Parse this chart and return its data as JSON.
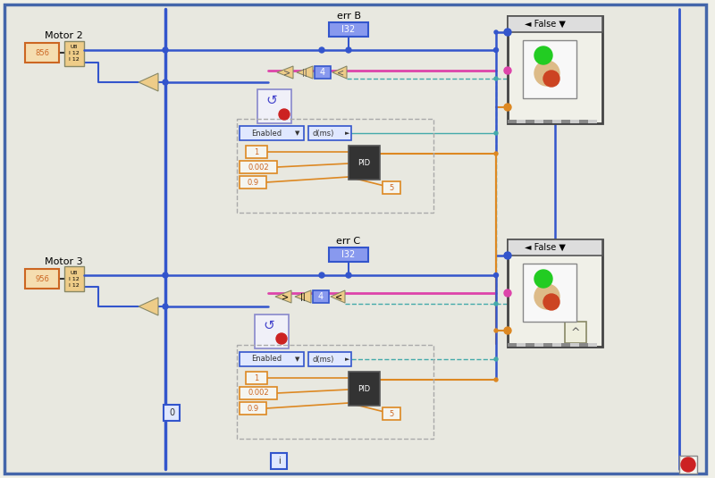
{
  "bg_color": "#f0f0e8",
  "wire_blue": "#3355cc",
  "wire_pink": "#dd44aa",
  "wire_orange": "#dd8822",
  "wire_green": "#44aa44",
  "wire_teal": "#44aaaa",
  "motor2_label": "Motor 2",
  "motor3_label": "Motor 3",
  "errB_label": "err B",
  "errC_label": "err C",
  "false_label": "False",
  "enabled_label": "Enabled",
  "pid_label": "PID",
  "val1": "1",
  "val2": "0.002",
  "val3": "0.9",
  "val4": "4",
  "val5": "5",
  "val6": "0",
  "val7": "I32",
  "dms_label": "d(ms)",
  "dms_label2": "d(ms)"
}
